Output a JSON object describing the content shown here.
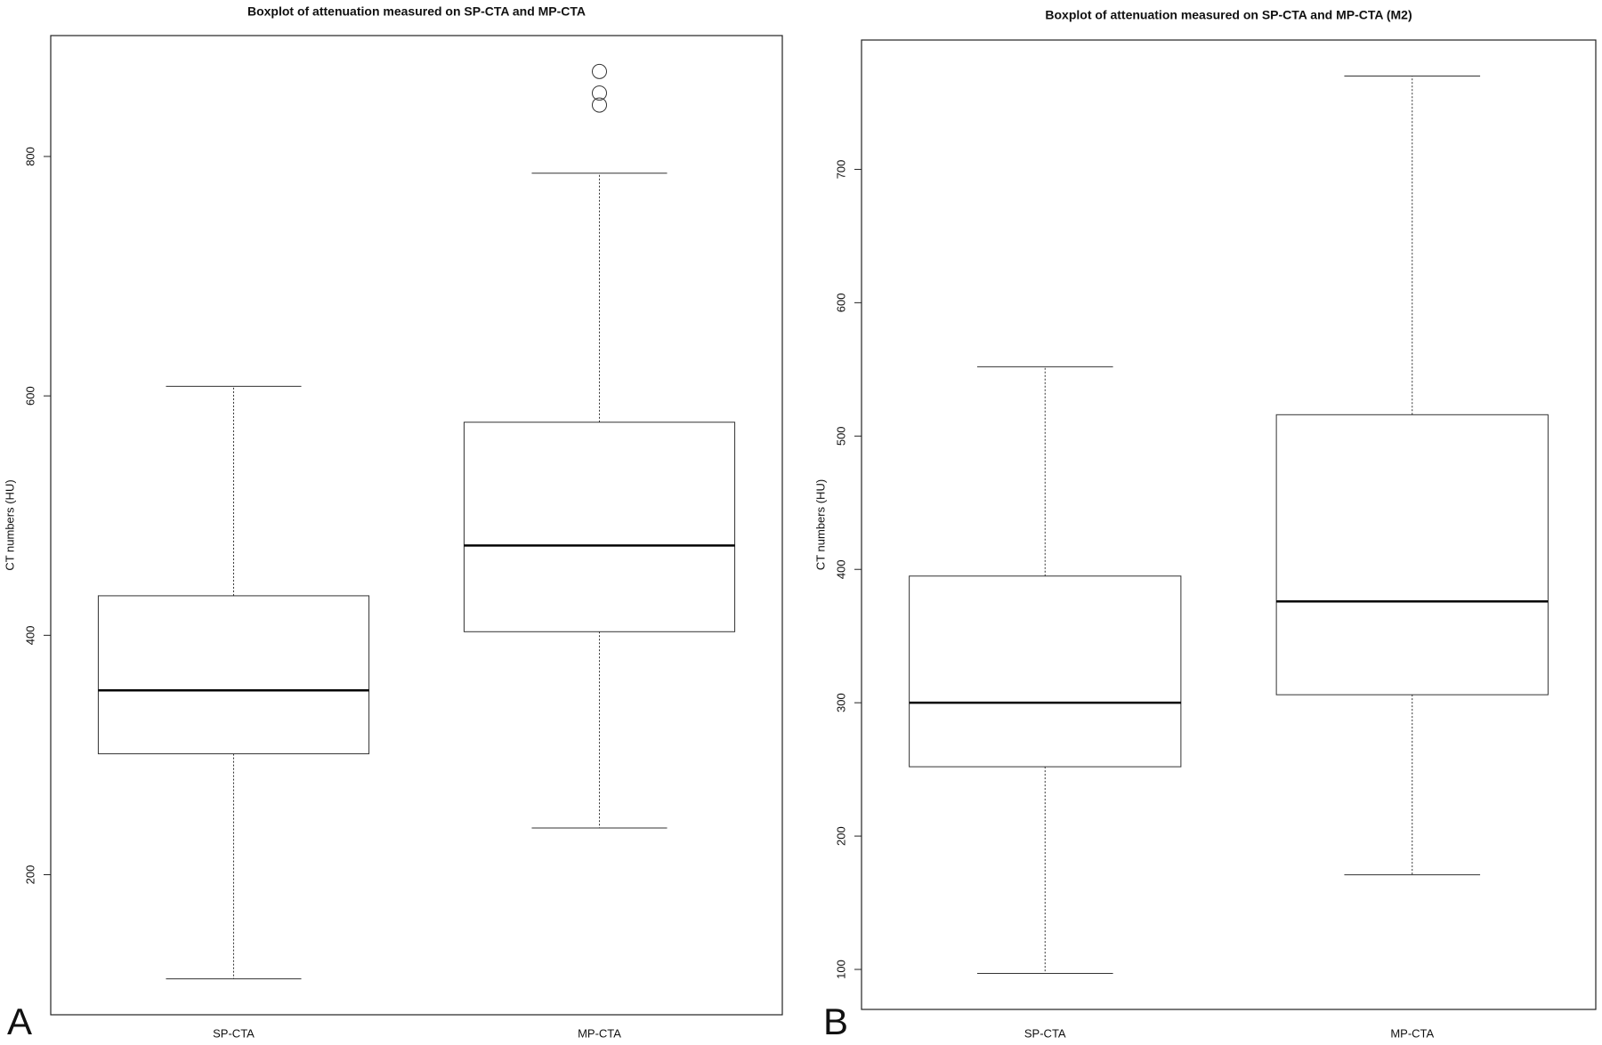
{
  "chart_data": [
    {
      "type": "boxplot",
      "panel_label": "A",
      "title": "Boxplot of attenuation measured on SP-CTA and MP-CTA",
      "y_label": "CT numbers (HU)",
      "categories": [
        "SP-CTA",
        "MP-CTA"
      ],
      "boxes": [
        {
          "whisker_low": 113,
          "q1": 301,
          "median": 354,
          "q3": 433,
          "whisker_high": 608,
          "outliers": []
        },
        {
          "whisker_low": 239,
          "q1": 403,
          "median": 475,
          "q3": 578,
          "whisker_high": 786,
          "outliers": [
            843,
            853,
            871
          ]
        }
      ],
      "ylim": [
        83,
        901
      ],
      "yticks": [
        200,
        400,
        600,
        800
      ]
    },
    {
      "type": "boxplot",
      "panel_label": "B",
      "title": "Boxplot of attenuation measured on SP-CTA and MP-CTA (M2)",
      "y_label": "CT numbers (HU)",
      "categories": [
        "SP-CTA",
        "MP-CTA"
      ],
      "boxes": [
        {
          "whisker_low": 97,
          "q1": 252,
          "median": 300,
          "q3": 395,
          "whisker_high": 552,
          "outliers": []
        },
        {
          "whisker_low": 171,
          "q1": 306,
          "median": 376,
          "q3": 516,
          "whisker_high": 770,
          "outliers": []
        }
      ],
      "ylim": [
        70,
        797
      ],
      "yticks": [
        100,
        200,
        300,
        400,
        500,
        600,
        700
      ]
    }
  ]
}
